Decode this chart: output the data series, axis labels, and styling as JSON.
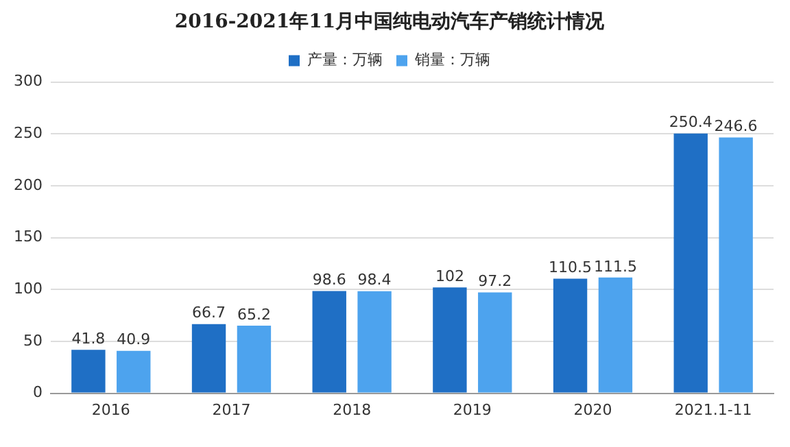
{
  "chart_data": {
    "type": "bar",
    "title": "2016-2021年11月中国纯电动汽车产销统计情况",
    "categories": [
      "2016",
      "2017",
      "2018",
      "2019",
      "2020",
      "2021.1-11"
    ],
    "series": [
      {
        "name": "产量：万辆",
        "color": "#1f6fc5",
        "values": [
          41.8,
          66.7,
          98.6,
          102,
          110.5,
          250.4
        ]
      },
      {
        "name": "销量：万辆",
        "color": "#4da3ee",
        "values": [
          40.9,
          65.2,
          98.4,
          97.2,
          111.5,
          246.6
        ]
      }
    ],
    "ylim": [
      0,
      300
    ],
    "yticks": [
      0,
      50,
      100,
      150,
      200,
      250,
      300
    ],
    "grid": "y",
    "legend": "top",
    "data_labels": true
  }
}
